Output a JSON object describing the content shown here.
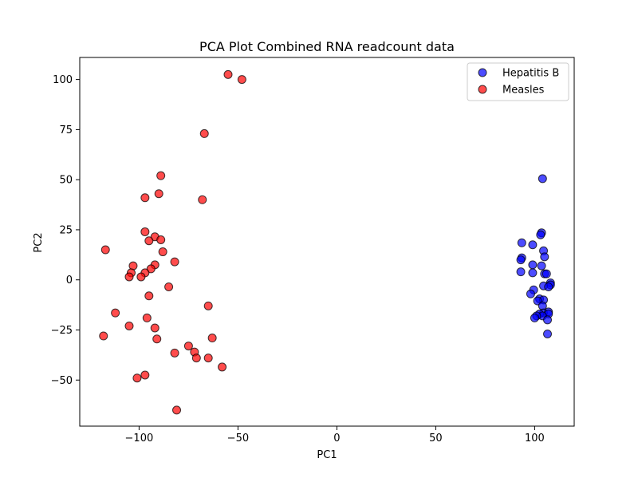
{
  "chart_data": {
    "type": "scatter",
    "title": "PCA Plot Combined RNA readcount data",
    "xlabel": "PC1",
    "ylabel": "PC2",
    "xlim": [
      -130,
      120
    ],
    "ylim": [
      -73,
      111
    ],
    "xticks": [
      -100,
      -50,
      0,
      50,
      100
    ],
    "yticks": [
      -50,
      -25,
      0,
      25,
      50,
      75,
      100
    ],
    "xtick_labels": [
      "−100",
      "−50",
      "0",
      "50",
      "100"
    ],
    "ytick_labels": [
      "−50",
      "−25",
      "0",
      "25",
      "50",
      "75",
      "100"
    ],
    "grid": false,
    "legend_position": "upper right",
    "series": [
      {
        "name": "Hepatitis B",
        "color": "#0000ff",
        "points": [
          [
            104,
            50.5
          ],
          [
            103.5,
            23.5
          ],
          [
            103,
            22.5
          ],
          [
            93.5,
            18.5
          ],
          [
            99,
            17.5
          ],
          [
            104.5,
            14.5
          ],
          [
            93.5,
            11
          ],
          [
            93,
            10
          ],
          [
            105,
            11.5
          ],
          [
            99,
            7.5
          ],
          [
            103.5,
            7
          ],
          [
            93,
            4
          ],
          [
            99,
            3.5
          ],
          [
            105,
            3
          ],
          [
            106,
            3
          ],
          [
            108,
            -1.5
          ],
          [
            108,
            -2.5
          ],
          [
            104.5,
            -3
          ],
          [
            107,
            -3.5
          ],
          [
            99.5,
            -5
          ],
          [
            98,
            -7
          ],
          [
            102.5,
            -9.5
          ],
          [
            104.5,
            -10
          ],
          [
            101.5,
            -10.5
          ],
          [
            104,
            -13
          ],
          [
            104.5,
            -16.5
          ],
          [
            107,
            -16
          ],
          [
            107,
            -17
          ],
          [
            102.5,
            -17
          ],
          [
            104,
            -18
          ],
          [
            101,
            -18
          ],
          [
            100,
            -19
          ],
          [
            106.5,
            -20
          ],
          [
            106.5,
            -27
          ]
        ]
      },
      {
        "name": "Measles",
        "color": "#ff0000",
        "points": [
          [
            -55,
            102.5
          ],
          [
            -48,
            100
          ],
          [
            -67,
            73
          ],
          [
            -89,
            52
          ],
          [
            -68,
            40
          ],
          [
            -97,
            41
          ],
          [
            -90,
            43
          ],
          [
            -97,
            24
          ],
          [
            -92,
            21.5
          ],
          [
            -89,
            20
          ],
          [
            -95,
            19.5
          ],
          [
            -117,
            15
          ],
          [
            -88,
            14
          ],
          [
            -82,
            9
          ],
          [
            -92,
            7.5
          ],
          [
            -103,
            7
          ],
          [
            -94,
            5.5
          ],
          [
            -104,
            3.5
          ],
          [
            -97,
            3.5
          ],
          [
            -105,
            1.5
          ],
          [
            -99,
            1.5
          ],
          [
            -85,
            -3.5
          ],
          [
            -95,
            -8
          ],
          [
            -65,
            -13
          ],
          [
            -112,
            -16.5
          ],
          [
            -96,
            -19
          ],
          [
            -105,
            -23
          ],
          [
            -92,
            -24
          ],
          [
            -118,
            -28
          ],
          [
            -63,
            -29
          ],
          [
            -91,
            -29.5
          ],
          [
            -75,
            -33
          ],
          [
            -72,
            -36
          ],
          [
            -82,
            -36.5
          ],
          [
            -71,
            -39
          ],
          [
            -65,
            -39
          ],
          [
            -58,
            -43.5
          ],
          [
            -97,
            -47.5
          ],
          [
            -101,
            -49
          ],
          [
            -81,
            -65
          ]
        ]
      }
    ]
  }
}
